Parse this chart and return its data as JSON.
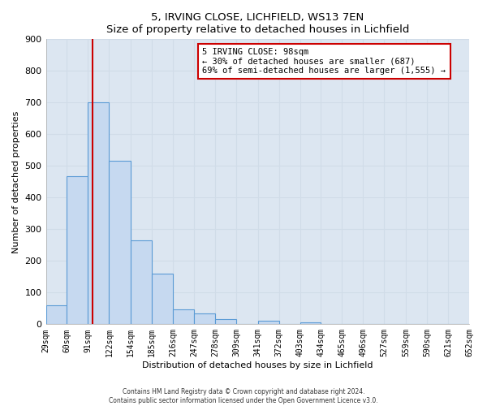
{
  "title": "5, IRVING CLOSE, LICHFIELD, WS13 7EN",
  "subtitle": "Size of property relative to detached houses in Lichfield",
  "xlabel": "Distribution of detached houses by size in Lichfield",
  "ylabel": "Number of detached properties",
  "bar_edges": [
    29,
    60,
    91,
    122,
    154,
    185,
    216,
    247,
    278,
    309,
    341,
    372,
    403,
    434,
    465,
    496,
    527,
    559,
    590,
    621,
    652
  ],
  "bar_heights": [
    60,
    467,
    700,
    515,
    265,
    160,
    47,
    35,
    15,
    0,
    10,
    0,
    5,
    0,
    0,
    0,
    0,
    0,
    0,
    0
  ],
  "bar_color": "#c6d9f0",
  "bar_edge_color": "#5b9bd5",
  "property_line_x": 98,
  "property_line_color": "#cc0000",
  "ylim": [
    0,
    900
  ],
  "yticks": [
    0,
    100,
    200,
    300,
    400,
    500,
    600,
    700,
    800,
    900
  ],
  "annotation_text": "5 IRVING CLOSE: 98sqm\n← 30% of detached houses are smaller (687)\n69% of semi-detached houses are larger (1,555) →",
  "annotation_box_facecolor": "#ffffff",
  "annotation_box_edgecolor": "#cc0000",
  "footer_line1": "Contains HM Land Registry data © Crown copyright and database right 2024.",
  "footer_line2": "Contains public sector information licensed under the Open Government Licence v3.0.",
  "tick_labels": [
    "29sqm",
    "60sqm",
    "91sqm",
    "122sqm",
    "154sqm",
    "185sqm",
    "216sqm",
    "247sqm",
    "278sqm",
    "309sqm",
    "341sqm",
    "372sqm",
    "403sqm",
    "434sqm",
    "465sqm",
    "496sqm",
    "527sqm",
    "559sqm",
    "590sqm",
    "621sqm",
    "652sqm"
  ],
  "grid_color": "#d0dce8",
  "plot_bg_color": "#dce6f1",
  "background_color": "#ffffff"
}
